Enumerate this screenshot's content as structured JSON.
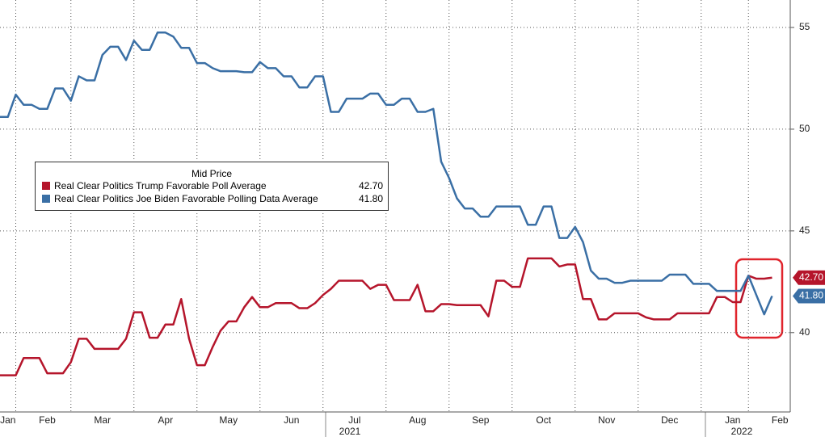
{
  "chart_data": {
    "type": "line",
    "legend_title": "Mid Price",
    "annotations": [
      "2021",
      "2022"
    ],
    "categories": [
      null,
      "Jan",
      null,
      null,
      null,
      null,
      "Feb",
      null,
      null,
      null,
      null,
      null,
      null,
      "Mar",
      null,
      null,
      null,
      null,
      null,
      null,
      null,
      "Apr",
      null,
      null,
      null,
      null,
      null,
      null,
      null,
      "May",
      null,
      null,
      null,
      null,
      null,
      null,
      null,
      "Jun",
      null,
      null,
      null,
      null,
      null,
      null,
      null,
      "Jul",
      null,
      null,
      null,
      null,
      null,
      null,
      null,
      "Aug",
      null,
      null,
      null,
      null,
      null,
      null,
      null,
      "Sep",
      null,
      null,
      null,
      null,
      null,
      null,
      null,
      "Oct",
      null,
      null,
      null,
      null,
      null,
      null,
      null,
      "Nov",
      null,
      null,
      null,
      null,
      null,
      null,
      null,
      "Dec",
      null,
      null,
      null,
      null,
      null,
      null,
      null,
      "Jan",
      null,
      null,
      null,
      null,
      null,
      "Feb"
    ],
    "series": [
      {
        "name": "Real Clear Politics Trump Favorable Poll Average",
        "color": "#b5152b",
        "last_label": "42.70",
        "values": [
          37.9,
          37.9,
          37.9,
          38.75,
          38.75,
          38.75,
          38.0,
          38.0,
          38.0,
          38.55,
          39.7,
          39.7,
          39.2,
          39.2,
          39.2,
          39.2,
          39.7,
          41.0,
          41.0,
          39.75,
          39.75,
          40.4,
          40.4,
          41.65,
          39.7,
          38.4,
          38.4,
          39.3,
          40.1,
          40.55,
          40.55,
          41.25,
          41.75,
          41.25,
          41.25,
          41.45,
          41.45,
          41.45,
          41.2,
          41.2,
          41.45,
          41.85,
          42.15,
          42.55,
          42.55,
          42.55,
          42.55,
          42.15,
          42.35,
          42.35,
          41.6,
          41.6,
          41.6,
          42.35,
          41.05,
          41.05,
          41.4,
          41.4,
          41.35,
          41.35,
          41.35,
          41.35,
          40.8,
          42.55,
          42.55,
          42.25,
          42.25,
          43.65,
          43.65,
          43.65,
          43.65,
          43.25,
          43.35,
          43.35,
          41.65,
          41.65,
          40.65,
          40.65,
          40.95,
          40.95,
          40.95,
          40.95,
          40.75,
          40.65,
          40.65,
          40.65,
          40.95,
          40.95,
          40.95,
          40.95,
          40.95,
          41.75,
          41.75,
          41.5,
          41.5,
          42.8,
          42.65,
          42.65,
          42.7,
          null
        ]
      },
      {
        "name": "Real Clear Politics Joe Biden Favorable Polling Data Average",
        "color": "#3a6fa5",
        "last_label": "41.80",
        "values": [
          50.6,
          50.6,
          51.7,
          51.2,
          51.2,
          51.0,
          51.0,
          52.0,
          52.0,
          51.4,
          52.6,
          52.4,
          52.4,
          53.65,
          54.05,
          54.05,
          53.4,
          54.35,
          53.9,
          53.9,
          54.75,
          54.75,
          54.55,
          54.0,
          54.0,
          53.25,
          53.25,
          53.0,
          52.85,
          52.85,
          52.85,
          52.8,
          52.8,
          53.3,
          53.0,
          53.0,
          52.6,
          52.6,
          52.05,
          52.05,
          52.6,
          52.6,
          50.85,
          50.85,
          51.5,
          51.5,
          51.5,
          51.75,
          51.75,
          51.2,
          51.2,
          51.5,
          51.5,
          50.85,
          50.85,
          51.0,
          48.4,
          47.6,
          46.6,
          46.1,
          46.1,
          45.7,
          45.7,
          46.2,
          46.2,
          46.2,
          46.2,
          45.3,
          45.3,
          46.2,
          46.2,
          44.65,
          44.65,
          45.2,
          44.45,
          43.05,
          42.65,
          42.65,
          42.45,
          42.45,
          42.55,
          42.55,
          42.55,
          42.55,
          42.55,
          42.85,
          42.85,
          42.85,
          42.4,
          42.4,
          42.4,
          42.05,
          42.05,
          42.05,
          42.05,
          42.8,
          41.85,
          40.9,
          41.8,
          null
        ]
      }
    ],
    "ylim": [
      36.1,
      56.35
    ],
    "yticks": [
      40,
      45,
      50,
      55
    ],
    "grid": true
  }
}
